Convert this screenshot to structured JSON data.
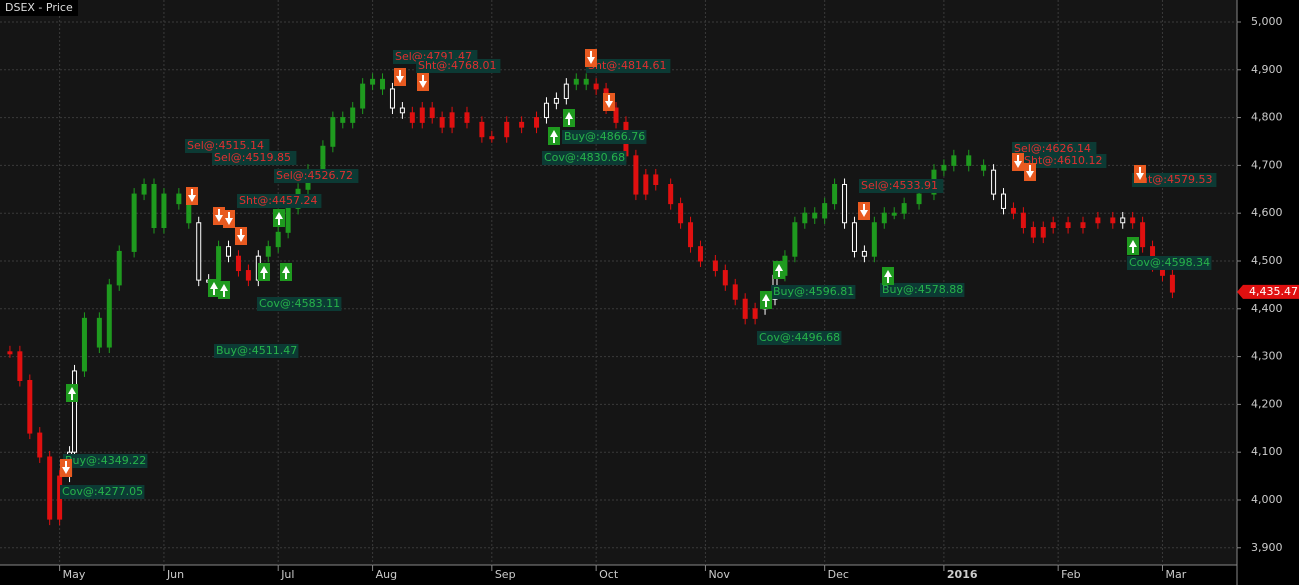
{
  "chart_data": {
    "type": "price",
    "title": "DSEX - Price",
    "x": [
      0,
      2,
      4,
      6,
      8,
      10,
      12,
      13,
      15,
      18,
      20,
      22,
      25,
      27,
      29,
      31,
      34,
      36,
      38,
      40,
      42,
      44,
      46,
      48,
      50,
      52,
      54,
      56,
      58,
      60,
      63,
      65,
      67,
      69,
      71,
      73,
      75,
      77,
      79,
      81,
      83,
      85,
      87,
      89,
      92,
      95,
      97,
      100,
      103,
      106,
      108,
      110,
      112,
      114,
      116,
      118,
      120,
      122,
      124,
      126,
      128,
      130,
      133,
      135,
      137,
      139,
      142,
      144,
      146,
      148,
      150,
      152,
      154,
      156,
      158,
      160,
      162,
      164,
      166,
      168,
      170,
      172,
      174,
      176,
      178,
      180,
      183,
      186,
      188,
      190,
      193,
      196,
      198,
      200,
      202,
      204,
      206,
      208,
      210,
      213,
      216,
      219,
      222,
      224,
      226,
      228,
      230,
      232,
      234
    ],
    "values": [
      4310,
      4250,
      4140,
      4090,
      3960,
      4050,
      4100,
      4270,
      4380,
      4320,
      4450,
      4520,
      4640,
      4660,
      4570,
      4640,
      4620,
      4580,
      4460,
      4460,
      4530,
      4510,
      4480,
      4460,
      4510,
      4530,
      4560,
      4610,
      4650,
      4690,
      4740,
      4800,
      4790,
      4820,
      4870,
      4880,
      4860,
      4820,
      4810,
      4790,
      4820,
      4800,
      4780,
      4810,
      4790,
      4760,
      4760,
      4790,
      4780,
      4800,
      4830,
      4840,
      4870,
      4880,
      4870,
      4860,
      4820,
      4790,
      4720,
      4640,
      4680,
      4660,
      4620,
      4580,
      4530,
      4500,
      4480,
      4450,
      4420,
      4380,
      4400,
      4420,
      4470,
      4510,
      4580,
      4600,
      4590,
      4620,
      4660,
      4580,
      4520,
      4510,
      4580,
      4600,
      4600,
      4620,
      4640,
      4690,
      4700,
      4720,
      4700,
      4690,
      4640,
      4610,
      4600,
      4570,
      4550,
      4570,
      4580,
      4570,
      4580,
      4590,
      4580,
      4590,
      4580,
      4530,
      4490,
      4470,
      4435
    ],
    "point_colors": [
      "#e01010",
      "#e01010",
      "#e01010",
      "#e01010",
      "#e01010",
      "#e01010",
      "#ffffff",
      "#ffffff",
      "#1f9a1f",
      "#1f9a1f",
      "#1f9a1f",
      "#1f9a1f",
      "#1f9a1f",
      "#1f9a1f",
      "#1f9a1f",
      "#1f9a1f",
      "#1f9a1f",
      "#1f9a1f",
      "#ffffff",
      "#ffffff",
      "#1f9a1f",
      "#ffffff",
      "#e01010",
      "#e01010",
      "#ffffff",
      "#1f9a1f",
      "#1f9a1f",
      "#1f9a1f",
      "#1f9a1f",
      "#1f9a1f",
      "#1f9a1f",
      "#1f9a1f",
      "#1f9a1f",
      "#1f9a1f",
      "#1f9a1f",
      "#1f9a1f",
      "#1f9a1f",
      "#ffffff",
      "#ffffff",
      "#e01010",
      "#e01010",
      "#e01010",
      "#e01010",
      "#e01010",
      "#e01010",
      "#e01010",
      "#e01010",
      "#e01010",
      "#e01010",
      "#e01010",
      "#ffffff",
      "#ffffff",
      "#ffffff",
      "#1f9a1f",
      "#1f9a1f",
      "#e01010",
      "#e01010",
      "#e01010",
      "#e01010",
      "#e01010",
      "#e01010",
      "#e01010",
      "#e01010",
      "#e01010",
      "#e01010",
      "#e01010",
      "#e01010",
      "#e01010",
      "#e01010",
      "#e01010",
      "#e01010",
      "#ffffff",
      "#ffffff",
      "#1f9a1f",
      "#1f9a1f",
      "#1f9a1f",
      "#1f9a1f",
      "#1f9a1f",
      "#1f9a1f",
      "#ffffff",
      "#ffffff",
      "#ffffff",
      "#1f9a1f",
      "#1f9a1f",
      "#1f9a1f",
      "#1f9a1f",
      "#1f9a1f",
      "#1f9a1f",
      "#1f9a1f",
      "#1f9a1f",
      "#1f9a1f",
      "#1f9a1f",
      "#ffffff",
      "#ffffff",
      "#e01010",
      "#e01010",
      "#e01010",
      "#e01010",
      "#e01010",
      "#e01010",
      "#e01010",
      "#e01010",
      "#e01010",
      "#ffffff",
      "#e01010",
      "#e01010",
      "#e01010",
      "#e01010",
      "#e01010"
    ],
    "xlim": [
      -2,
      247
    ],
    "xticks": [
      {
        "value": 10,
        "label": "May"
      },
      {
        "value": 31,
        "label": "Jun"
      },
      {
        "value": 54,
        "label": "Jul"
      },
      {
        "value": 73,
        "label": "Aug"
      },
      {
        "value": 97,
        "label": "Sep"
      },
      {
        "value": 118,
        "label": "Oct"
      },
      {
        "value": 140,
        "label": "Nov"
      },
      {
        "value": 164,
        "label": "Dec"
      },
      {
        "value": 188,
        "label": "2016"
      },
      {
        "value": 211,
        "label": "Feb"
      },
      {
        "value": 232,
        "label": "Mar"
      }
    ],
    "ylim": [
      3864,
      5046
    ],
    "yticks": [
      {
        "value": 3900,
        "label": "3,900"
      },
      {
        "value": 4000,
        "label": "4,000"
      },
      {
        "value": 4100,
        "label": "4,100"
      },
      {
        "value": 4200,
        "label": "4,200"
      },
      {
        "value": 4300,
        "label": "4,300"
      },
      {
        "value": 4400,
        "label": "4,400"
      },
      {
        "value": 4500,
        "label": "4,500"
      },
      {
        "value": 4600,
        "label": "4,600"
      },
      {
        "value": 4700,
        "label": "4,700"
      },
      {
        "value": 4800,
        "label": "4,800"
      },
      {
        "value": 4900,
        "label": "4,900"
      },
      {
        "value": 5000,
        "label": "5,000"
      }
    ],
    "last_price": {
      "value": 4435.47,
      "label": "4,435.47"
    },
    "grid": true,
    "annotations": [
      {
        "text": "Sel@:4515.14",
        "kind": "sell"
      },
      {
        "text": "Sel@:4519.85",
        "kind": "sell"
      },
      {
        "text": "Sel@:4526.72",
        "kind": "sell"
      },
      {
        "text": "Sht@:4457.24",
        "kind": "sell"
      },
      {
        "text": "Sel@:4791.47",
        "kind": "sell"
      },
      {
        "text": "Sht@:4768.01",
        "kind": "sell"
      },
      {
        "text": "Sht@:4814.61",
        "kind": "sell"
      },
      {
        "text": "Buy@:4866.76",
        "kind": "buy"
      },
      {
        "text": "Cov@:4830.68",
        "kind": "buy"
      },
      {
        "text": "Sel@:4533.91",
        "kind": "sell"
      },
      {
        "text": "Sel@:4626.14",
        "kind": "sell"
      },
      {
        "text": "Sht@:4610.12",
        "kind": "sell"
      },
      {
        "text": "Sht@:4579.53",
        "kind": "sell"
      },
      {
        "text": "Cov@:4598.34",
        "kind": "buy"
      },
      {
        "text": "Buy@:4578.88",
        "kind": "buy"
      },
      {
        "text": "Buy@:4596.81",
        "kind": "buy"
      },
      {
        "text": "Cov@:4496.68",
        "kind": "buy"
      },
      {
        "text": "Cov@:4583.11",
        "kind": "buy"
      },
      {
        "text": "Buy@:4511.47",
        "kind": "buy"
      },
      {
        "text": "Buy@:4349.22",
        "kind": "buy"
      },
      {
        "text": "Cov@:4277.05",
        "kind": "buy"
      }
    ]
  }
}
